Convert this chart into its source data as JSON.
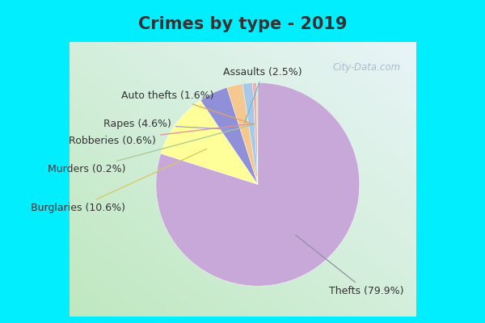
{
  "title": "Crimes by type - 2019",
  "labels": [
    "Thefts",
    "Burglaries",
    "Rapes",
    "Assaults",
    "Auto thefts",
    "Robberies",
    "Murders"
  ],
  "percentages": [
    79.9,
    10.6,
    4.6,
    2.5,
    1.6,
    0.6,
    0.2
  ],
  "colors": [
    "#c8a8d8",
    "#ffff99",
    "#9090d8",
    "#f5c890",
    "#a8c8e8",
    "#f0b0b0",
    "#c8e8b0"
  ],
  "line_colors": [
    "#a0a0c0",
    "#e0d080",
    "#b0b0e0",
    "#f0a870",
    "#90b8d8",
    "#e8a0a0",
    "#b8d8a0"
  ],
  "title_fontsize": 15,
  "label_fontsize": 9,
  "title_color": "#333333",
  "label_color": "#333333",
  "title_bg": "#00eeff",
  "chart_bg_left": "#c8e8c8",
  "chart_bg_right": "#e8f0f8",
  "border_color": "#00eeff",
  "watermark": "City-Data.com",
  "watermark_color": "#aabbcc"
}
